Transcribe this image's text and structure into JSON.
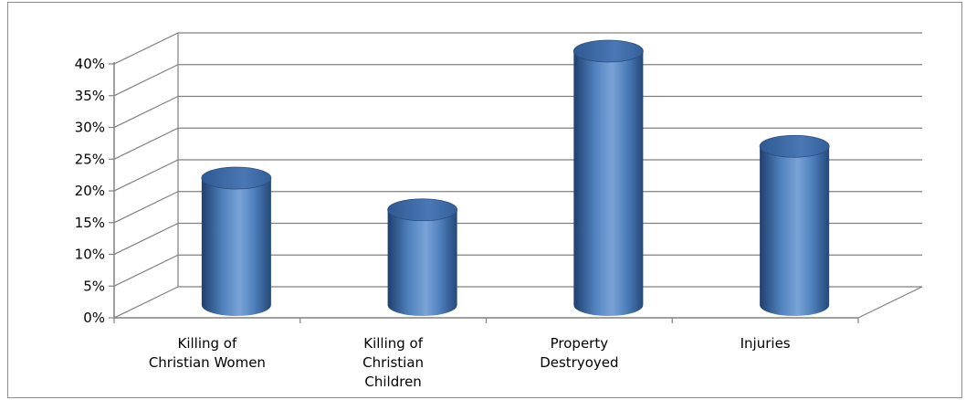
{
  "chart_data": {
    "type": "bar",
    "style": "3d-cylinder",
    "categories": [
      [
        "Killing of",
        "Christian Women"
      ],
      [
        "Killing of",
        "Christian",
        "Children"
      ],
      [
        "Property",
        "Destryoyed"
      ],
      [
        "Injuries"
      ]
    ],
    "values": [
      20,
      15,
      40,
      25
    ],
    "unit": "%",
    "ylim": [
      0,
      40
    ],
    "ytick_step": 5,
    "yticks": [
      "0%",
      "5%",
      "10%",
      "15%",
      "20%",
      "25%",
      "30%",
      "35%",
      "40%"
    ],
    "grid": true,
    "legend": "none",
    "colors": {
      "bar": "#4f81bd",
      "bar_dark": "#2c4d7e",
      "bar_light": "#8db3e2",
      "grid": "#808080"
    }
  }
}
